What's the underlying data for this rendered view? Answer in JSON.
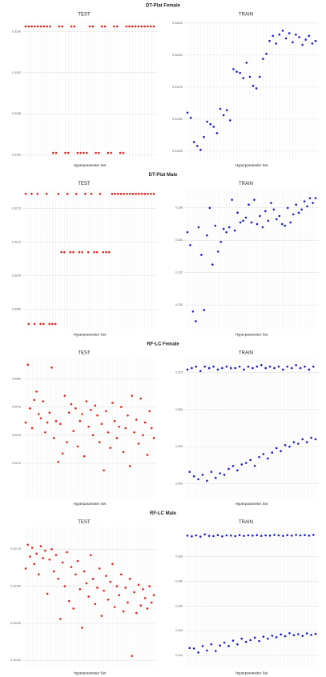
{
  "chart_data": [
    {
      "type": "scatter",
      "suptitle": "DT-Plat Female",
      "title": "TEST",
      "xlabel": "Hyperparameter Set",
      "color": "#e8201c",
      "ylim": [
        0.31835,
        0.31972
      ],
      "yticks": [
        0.3184,
        0.3188,
        0.3192,
        0.3196
      ],
      "values": [
        0.31965,
        0.31965,
        0.31965,
        0.31965,
        0.31965,
        0.31965,
        0.31965,
        0.31965,
        0.31965,
        0.31842,
        0.31842,
        0.31965,
        0.31965,
        0.31842,
        0.31842,
        0.31965,
        0.31965,
        0.31842,
        0.31842,
        0.31842,
        0.31842,
        0.31965,
        0.31965,
        0.31842,
        0.31842,
        0.31965,
        0.31965,
        0.31842,
        0.31842,
        0.31965,
        0.31965,
        0.31842,
        0.31842,
        0.31965,
        0.31965,
        0.31965,
        0.31965,
        0.31965,
        0.31965,
        0.31965,
        0.31965,
        0.31965,
        0.31965
      ]
    },
    {
      "type": "scatter",
      "title": "TRAIN",
      "xlabel": "Hyperparameter Set",
      "color": "#1a1ad0",
      "ylim": [
        0.31918,
        0.32028
      ],
      "yticks": [
        0.31925,
        {
          "value": 0.3195,
          "label": "0.31950"
        },
        0.31975,
        {
          "value": 0.32,
          "label": "0.32000"
        },
        0.32025
      ],
      "values": [
        0.31955,
        0.31951,
        0.31932,
        0.31929,
        0.31926,
        0.31936,
        0.31948,
        0.31946,
        0.31944,
        0.31939,
        0.31958,
        0.31953,
        0.31957,
        0.31949,
        0.31989,
        0.31987,
        0.31986,
        0.31982,
        0.31994,
        0.31983,
        0.31976,
        0.31974,
        0.31983,
        0.31997,
        0.32001,
        0.32011,
        0.32015,
        0.32009,
        0.32016,
        0.32019,
        0.32013,
        0.32017,
        0.3201,
        0.32016,
        0.32014,
        0.32008,
        0.32012,
        0.32015,
        0.32009,
        0.32011
      ]
    },
    {
      "type": "scatter",
      "suptitle": "DT-Plat Male",
      "title": "TEST",
      "xlabel": "Hyperparameter Set",
      "color": "#e8201c",
      "ylim": [
        0.3197,
        0.3218
      ],
      "yticks": [
        {
          "value": 0.32,
          "label": "0.3200"
        },
        0.3205,
        {
          "value": 0.321,
          "label": "0.3210"
        },
        0.3215
      ],
      "values": [
        0.32172,
        0.31978,
        0.32172,
        0.31978,
        0.32172,
        0.31978,
        0.31978,
        0.32172,
        0.31978,
        0.31978,
        0.31978,
        0.32172,
        0.32085,
        0.32085,
        0.32172,
        0.32085,
        0.32085,
        0.32172,
        0.32085,
        0.32085,
        0.32172,
        0.32085,
        0.32172,
        0.32085,
        0.32085,
        0.32172,
        0.32085,
        0.32085,
        0.32085,
        0.32172,
        0.32172,
        0.32172,
        0.32172,
        0.32172,
        0.32172,
        0.32172,
        0.32172,
        0.32172,
        0.32172,
        0.32172,
        0.32172,
        0.32172,
        0.32172,
        0.32172
      ]
    },
    {
      "type": "scatter",
      "title": "TRAIN",
      "xlabel": "Hyperparameter Set",
      "color": "#1a1ad0",
      "ylim": [
        0.3285,
        0.3372
      ],
      "yticks": [
        {
          "value": 0.33,
          "label": "0.330"
        },
        0.332,
        0.334,
        0.336
      ],
      "values": [
        0.3345,
        0.3337,
        0.3296,
        0.329,
        0.3348,
        0.3331,
        0.3297,
        0.3343,
        0.336,
        0.3325,
        0.3349,
        0.3333,
        0.3339,
        0.3347,
        0.3345,
        0.3348,
        0.3365,
        0.3346,
        0.3357,
        0.3351,
        0.3352,
        0.3354,
        0.3362,
        0.3351,
        0.3365,
        0.335,
        0.3355,
        0.3348,
        0.3358,
        0.3352,
        0.3363,
        0.3359,
        0.3353,
        0.3355,
        0.335,
        0.3349,
        0.336,
        0.3351,
        0.3356,
        0.3362,
        0.3357,
        0.3359,
        0.3364,
        0.3361,
        0.3366,
        0.3363,
        0.3366
      ]
    },
    {
      "type": "scatter",
      "suptitle": "RF-LC Female",
      "title": "TEST",
      "xlabel": "Hyperparameter Set",
      "color": "#e8201c",
      "ylim": [
        0.50715,
        0.50815
      ],
      "yticks": [
        0.5074,
        0.5076,
        0.5078,
        {
          "value": 0.508,
          "label": "0.5080"
        }
      ],
      "values": [
        0.50769,
        0.5081,
        0.50779,
        0.50765,
        0.50785,
        0.50791,
        0.50775,
        0.50772,
        0.50784,
        0.50762,
        0.50769,
        0.50776,
        0.50808,
        0.50758,
        0.5077,
        0.50741,
        0.50768,
        0.50747,
        0.50788,
        0.50755,
        0.50776,
        0.50782,
        0.50763,
        0.50779,
        0.50752,
        0.5077,
        0.50775,
        0.50745,
        0.50784,
        0.50766,
        0.50778,
        0.5076,
        0.50781,
        0.50774,
        0.50755,
        0.50768,
        0.50735,
        0.50777,
        0.50762,
        0.50751,
        0.50783,
        0.5077,
        0.50758,
        0.50766,
        0.5078,
        0.50748,
        0.50765,
        0.50774,
        0.50738,
        0.50788,
        0.50762,
        0.50771,
        0.50754,
        0.50786,
        0.5076,
        0.50769,
        0.50746,
        0.50777,
        0.50765,
        0.50758
      ]
    },
    {
      "type": "scatter",
      "title": "TRAIN",
      "xlabel": "Hyperparameter Set",
      "color": "#1a1ad0",
      "ylim": [
        0.49,
        0.585
      ],
      "yticks": [
        {
          "value": 0.5,
          "label": "0.500"
        },
        0.525,
        {
          "value": 0.55,
          "label": "0.550"
        },
        0.575
      ],
      "values": [
        0.577,
        0.508,
        0.578,
        0.505,
        0.579,
        0.503,
        0.576,
        0.506,
        0.579,
        0.502,
        0.578,
        0.508,
        0.579,
        0.504,
        0.577,
        0.507,
        0.578,
        0.506,
        0.579,
        0.51,
        0.578,
        0.512,
        0.578,
        0.509,
        0.579,
        0.513,
        0.577,
        0.514,
        0.579,
        0.516,
        0.578,
        0.512,
        0.579,
        0.518,
        0.58,
        0.52,
        0.578,
        0.517,
        0.579,
        0.521,
        0.578,
        0.524,
        0.579,
        0.522,
        0.577,
        0.526,
        0.579,
        0.525,
        0.578,
        0.528,
        0.58,
        0.527,
        0.578,
        0.53,
        0.579,
        0.528,
        0.577,
        0.531,
        0.579,
        0.53
      ]
    },
    {
      "type": "scatter",
      "suptitle": "RF-LC Male",
      "title": "TEST",
      "xlabel": "Hyperparameter Set",
      "color": "#e8201c",
      "ylim": [
        0.32095,
        0.3219
      ],
      "yticks": [
        {
          "value": 0.321,
          "label": "0.32100"
        },
        0.32125,
        {
          "value": 0.3215,
          "label": "0.32150"
        },
        0.32175
      ],
      "values": [
        0.32162,
        0.32178,
        0.3217,
        0.32176,
        0.32165,
        0.32172,
        0.32158,
        0.32177,
        0.32169,
        0.32174,
        0.32145,
        0.32168,
        0.32175,
        0.3216,
        0.32171,
        0.32155,
        0.32128,
        0.32166,
        0.3215,
        0.32173,
        0.3214,
        0.32163,
        0.32135,
        0.32158,
        0.32167,
        0.32148,
        0.32122,
        0.3216,
        0.32152,
        0.32143,
        0.32171,
        0.32155,
        0.32138,
        0.32149,
        0.32162,
        0.3213,
        0.32147,
        0.32157,
        0.32141,
        0.32153,
        0.32165,
        0.32136,
        0.3215,
        0.32144,
        0.32158,
        0.32133,
        0.32149,
        0.32139,
        0.32155,
        0.32103,
        0.32146,
        0.32132,
        0.32151,
        0.32137,
        0.32148,
        0.32142,
        0.32135,
        0.3215,
        0.32139,
        0.32144
      ]
    },
    {
      "type": "scatter",
      "title": "TRAIN",
      "xlabel": "Hyperparameter Set",
      "color": "#1a1ad0",
      "ylim": [
        0.305,
        0.362
      ],
      "yticks": [
        {
          "value": 0.31,
          "label": "0.310"
        },
        {
          "value": 0.32,
          "label": "0.320"
        },
        {
          "value": 0.33,
          "label": "0.330"
        },
        {
          "value": 0.34,
          "label": "0.340"
        },
        {
          "value": 0.35,
          "label": "0.350"
        }
      ],
      "values": [
        0.3585,
        0.313,
        0.3582,
        0.3128,
        0.3586,
        0.3112,
        0.3581,
        0.3138,
        0.359,
        0.312,
        0.3584,
        0.3145,
        0.3583,
        0.3118,
        0.3587,
        0.314,
        0.3582,
        0.3152,
        0.3586,
        0.3138,
        0.3585,
        0.316,
        0.3583,
        0.3145,
        0.3587,
        0.3168,
        0.3584,
        0.3155,
        0.3586,
        0.3162,
        0.3585,
        0.3172,
        0.3587,
        0.3158,
        0.3584,
        0.3176,
        0.3586,
        0.3168,
        0.3585,
        0.318,
        0.3588,
        0.3174,
        0.3586,
        0.3185,
        0.3584,
        0.3178,
        0.3587,
        0.319,
        0.3585,
        0.3182,
        0.3588,
        0.3186,
        0.3586,
        0.3179,
        0.3587,
        0.3189,
        0.3585,
        0.3183,
        0.3588,
        0.3187
      ]
    }
  ]
}
